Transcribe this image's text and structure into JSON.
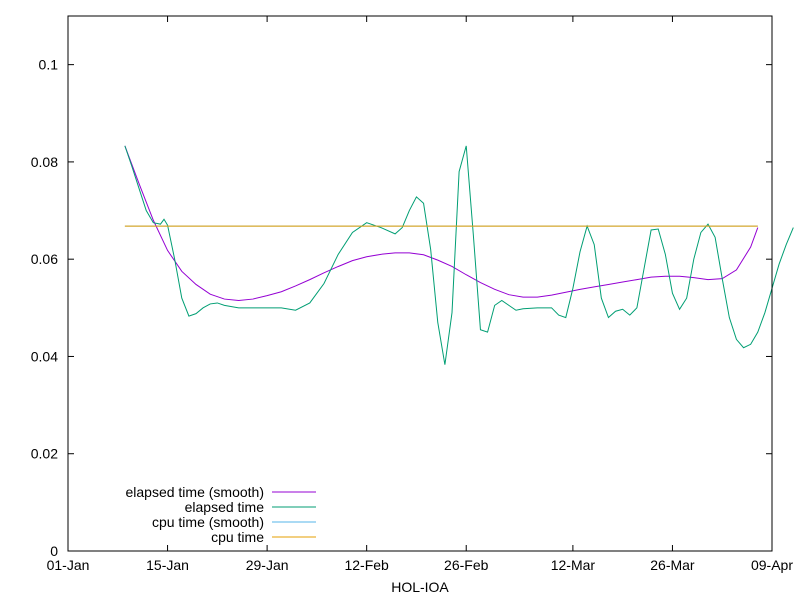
{
  "chart_data": {
    "type": "line",
    "xlabel": "HOL-IOA",
    "ylabel": "",
    "x_range": [
      "2024-01-01",
      "2024-04-09"
    ],
    "ylim": [
      0,
      0.11
    ],
    "grid": false,
    "legend_position": "bottom-left",
    "x_ticks": [
      {
        "date": "2024-01-01",
        "label": "01-Jan"
      },
      {
        "date": "2024-01-15",
        "label": "15-Jan"
      },
      {
        "date": "2024-01-29",
        "label": "29-Jan"
      },
      {
        "date": "2024-02-12",
        "label": "12-Feb"
      },
      {
        "date": "2024-02-26",
        "label": "26-Feb"
      },
      {
        "date": "2024-03-12",
        "label": "12-Mar"
      },
      {
        "date": "2024-03-26",
        "label": "26-Mar"
      },
      {
        "date": "2024-04-09",
        "label": "09-Apr"
      }
    ],
    "y_ticks": [
      {
        "value": 0,
        "label": "0"
      },
      {
        "value": 0.02,
        "label": "0.02"
      },
      {
        "value": 0.04,
        "label": "0.04"
      },
      {
        "value": 0.06,
        "label": "0.06"
      },
      {
        "value": 0.08,
        "label": "0.08"
      },
      {
        "value": 0.1,
        "label": "0.1"
      }
    ],
    "series": [
      {
        "name": "elapsed time (smooth)",
        "color": "#9400d3",
        "points": [
          [
            "2024-01-09",
            0.0833
          ],
          [
            "2024-01-11",
            0.0755
          ],
          [
            "2024-01-13",
            0.068
          ],
          [
            "2024-01-15",
            0.0618
          ],
          [
            "2024-01-17",
            0.0575
          ],
          [
            "2024-01-19",
            0.0548
          ],
          [
            "2024-01-21",
            0.0528
          ],
          [
            "2024-01-23",
            0.0518
          ],
          [
            "2024-01-25",
            0.0515
          ],
          [
            "2024-01-27",
            0.0518
          ],
          [
            "2024-01-29",
            0.0525
          ],
          [
            "2024-01-31",
            0.0533
          ],
          [
            "2024-02-02",
            0.0545
          ],
          [
            "2024-02-04",
            0.0558
          ],
          [
            "2024-02-06",
            0.0572
          ],
          [
            "2024-02-08",
            0.0585
          ],
          [
            "2024-02-10",
            0.0597
          ],
          [
            "2024-02-12",
            0.0605
          ],
          [
            "2024-02-14",
            0.061
          ],
          [
            "2024-02-16",
            0.0613
          ],
          [
            "2024-02-18",
            0.0613
          ],
          [
            "2024-02-20",
            0.0609
          ],
          [
            "2024-02-22",
            0.0598
          ],
          [
            "2024-02-24",
            0.0585
          ],
          [
            "2024-02-26",
            0.0568
          ],
          [
            "2024-02-28",
            0.0552
          ],
          [
            "2024-03-01",
            0.0538
          ],
          [
            "2024-03-03",
            0.0527
          ],
          [
            "2024-03-05",
            0.0522
          ],
          [
            "2024-03-07",
            0.0522
          ],
          [
            "2024-03-09",
            0.0526
          ],
          [
            "2024-03-11",
            0.0532
          ],
          [
            "2024-03-13",
            0.0538
          ],
          [
            "2024-03-15",
            0.0543
          ],
          [
            "2024-03-17",
            0.0548
          ],
          [
            "2024-03-19",
            0.0553
          ],
          [
            "2024-03-21",
            0.0558
          ],
          [
            "2024-03-23",
            0.0563
          ],
          [
            "2024-03-25",
            0.0565
          ],
          [
            "2024-03-27",
            0.0565
          ],
          [
            "2024-03-29",
            0.0562
          ],
          [
            "2024-03-31",
            0.0558
          ],
          [
            "2024-04-02",
            0.056
          ],
          [
            "2024-04-04",
            0.0578
          ],
          [
            "2024-04-06",
            0.0625
          ],
          [
            "2024-04-07",
            0.0665
          ]
        ]
      },
      {
        "name": "elapsed time",
        "color": "#009e73",
        "points": [
          [
            "2024-01-09",
            0.0833
          ],
          [
            "2024-01-10",
            0.079
          ],
          [
            "2024-01-11",
            0.0745
          ],
          [
            "2024-01-12",
            0.07
          ],
          [
            "2024-01-13",
            0.0675
          ],
          [
            "2024-01-14",
            0.0672
          ],
          [
            "2024-01-14T12:00",
            0.0682
          ],
          [
            "2024-01-15",
            0.067
          ],
          [
            "2024-01-16",
            0.06
          ],
          [
            "2024-01-17",
            0.052
          ],
          [
            "2024-01-18",
            0.0483
          ],
          [
            "2024-01-19",
            0.0488
          ],
          [
            "2024-01-20",
            0.05
          ],
          [
            "2024-01-21",
            0.0508
          ],
          [
            "2024-01-22",
            0.051
          ],
          [
            "2024-01-23",
            0.0505
          ],
          [
            "2024-01-25",
            0.05
          ],
          [
            "2024-01-27",
            0.05
          ],
          [
            "2024-01-29",
            0.05
          ],
          [
            "2024-01-31",
            0.05
          ],
          [
            "2024-02-02",
            0.0495
          ],
          [
            "2024-02-04",
            0.051
          ],
          [
            "2024-02-06",
            0.055
          ],
          [
            "2024-02-08",
            0.061
          ],
          [
            "2024-02-10",
            0.0655
          ],
          [
            "2024-02-12",
            0.0675
          ],
          [
            "2024-02-14",
            0.0665
          ],
          [
            "2024-02-16",
            0.0652
          ],
          [
            "2024-02-17",
            0.0665
          ],
          [
            "2024-02-18",
            0.07
          ],
          [
            "2024-02-19",
            0.0728
          ],
          [
            "2024-02-20",
            0.0715
          ],
          [
            "2024-02-21",
            0.062
          ],
          [
            "2024-02-22",
            0.047
          ],
          [
            "2024-02-23",
            0.0383
          ],
          [
            "2024-02-24",
            0.049
          ],
          [
            "2024-02-25",
            0.078
          ],
          [
            "2024-02-26",
            0.0833
          ],
          [
            "2024-02-27",
            0.065
          ],
          [
            "2024-02-28",
            0.0455
          ],
          [
            "2024-02-29",
            0.045
          ],
          [
            "2024-03-01",
            0.0505
          ],
          [
            "2024-03-02",
            0.0515
          ],
          [
            "2024-03-03",
            0.0505
          ],
          [
            "2024-03-04",
            0.0495
          ],
          [
            "2024-03-05",
            0.0498
          ],
          [
            "2024-03-07",
            0.05
          ],
          [
            "2024-03-09",
            0.05
          ],
          [
            "2024-03-10",
            0.0485
          ],
          [
            "2024-03-11",
            0.048
          ],
          [
            "2024-03-12",
            0.054
          ],
          [
            "2024-03-13",
            0.0615
          ],
          [
            "2024-03-14",
            0.0668
          ],
          [
            "2024-03-15",
            0.063
          ],
          [
            "2024-03-16",
            0.052
          ],
          [
            "2024-03-17",
            0.048
          ],
          [
            "2024-03-18",
            0.0493
          ],
          [
            "2024-03-19",
            0.0497
          ],
          [
            "2024-03-20",
            0.0485
          ],
          [
            "2024-03-21",
            0.05
          ],
          [
            "2024-03-22",
            0.058
          ],
          [
            "2024-03-23",
            0.066
          ],
          [
            "2024-03-24",
            0.0662
          ],
          [
            "2024-03-25",
            0.061
          ],
          [
            "2024-03-26",
            0.053
          ],
          [
            "2024-03-27",
            0.0497
          ],
          [
            "2024-03-28",
            0.052
          ],
          [
            "2024-03-29",
            0.06
          ],
          [
            "2024-03-30",
            0.0655
          ],
          [
            "2024-03-31",
            0.0672
          ],
          [
            "2024-04-01",
            0.0645
          ],
          [
            "2024-04-02",
            0.056
          ],
          [
            "2024-04-03",
            0.048
          ],
          [
            "2024-04-04",
            0.0435
          ],
          [
            "2024-04-05",
            0.0418
          ],
          [
            "2024-04-06",
            0.0425
          ],
          [
            "2024-04-07",
            0.045
          ],
          [
            "2024-04-08",
            0.049
          ],
          [
            "2024-04-09",
            0.054
          ],
          [
            "2024-04-10",
            0.059
          ],
          [
            "2024-04-11",
            0.063
          ],
          [
            "2024-04-12",
            0.0665
          ]
        ]
      },
      {
        "name": "cpu time (smooth)",
        "color": "#56b4e9",
        "points": [
          [
            "2024-01-09",
            0.0668
          ],
          [
            "2024-04-07",
            0.0668
          ]
        ]
      },
      {
        "name": "cpu time",
        "color": "#e69f00",
        "points": [
          [
            "2024-01-09",
            0.0668
          ],
          [
            "2024-04-07",
            0.0668
          ]
        ]
      }
    ]
  }
}
